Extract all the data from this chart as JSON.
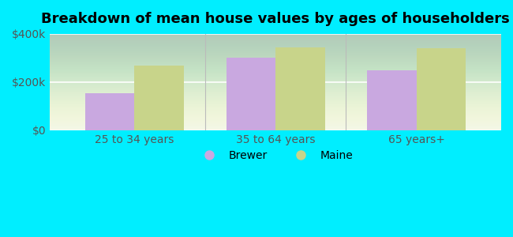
{
  "title": "Breakdown of mean house values by ages of householders",
  "categories": [
    "25 to 34 years",
    "35 to 64 years",
    "65 years+"
  ],
  "brewer_values": [
    155000,
    300000,
    248000
  ],
  "maine_values": [
    270000,
    345000,
    340000
  ],
  "brewer_color": "#c9a8e0",
  "maine_color": "#c8d48a",
  "background_color": "#00eeff",
  "ylim": [
    0,
    400000
  ],
  "yticks": [
    0,
    200000,
    400000
  ],
  "ytick_labels": [
    "$0",
    "$200k",
    "$400k"
  ],
  "bar_width": 0.35,
  "legend_labels": [
    "Brewer",
    "Maine"
  ],
  "title_fontsize": 13,
  "tick_fontsize": 10,
  "legend_fontsize": 10
}
